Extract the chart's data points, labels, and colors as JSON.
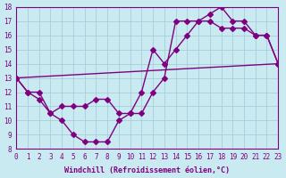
{
  "bg_color": "#c8eaf0",
  "grid_color": "#a0c8d8",
  "line_color": "#800080",
  "xlim": [
    0,
    23
  ],
  "ylim": [
    8,
    18
  ],
  "xlabel": "Windchill (Refroidissement éolien,°C)",
  "xticks": [
    0,
    1,
    2,
    3,
    4,
    5,
    6,
    7,
    8,
    9,
    10,
    11,
    12,
    13,
    14,
    15,
    16,
    17,
    18,
    19,
    20,
    21,
    22,
    23
  ],
  "yticks": [
    8,
    9,
    10,
    11,
    12,
    13,
    14,
    15,
    16,
    17,
    18
  ],
  "line1_x": [
    0,
    1,
    2,
    3,
    4,
    5,
    6,
    7,
    8,
    9,
    10,
    11,
    12,
    13,
    14,
    15,
    16,
    17,
    18,
    19,
    20,
    21,
    22,
    23
  ],
  "line1_y": [
    13,
    12,
    12,
    10.5,
    10,
    9,
    8.5,
    8.5,
    8.5,
    10,
    10.5,
    10.5,
    12,
    13,
    17,
    17,
    17,
    17.5,
    18,
    17,
    17,
    16,
    16,
    14
  ],
  "line2_x": [
    0,
    1,
    2,
    3,
    4,
    5,
    6,
    7,
    8,
    9,
    10,
    11,
    12,
    13,
    14,
    15,
    16,
    17,
    18,
    19,
    20,
    21,
    22,
    23
  ],
  "line2_y": [
    13,
    12,
    11.5,
    10.5,
    11,
    11,
    11,
    11.5,
    11.5,
    10.5,
    10.5,
    12,
    15,
    14,
    15,
    16,
    17,
    17,
    16.5,
    16.5,
    16.5,
    16,
    16,
    14
  ],
  "line3_x": [
    0,
    23
  ],
  "line3_y": [
    13,
    14
  ],
  "marker": "D",
  "markersize": 3,
  "linewidth": 1.0,
  "axis_fontsize": 6,
  "tick_fontsize": 5.5
}
